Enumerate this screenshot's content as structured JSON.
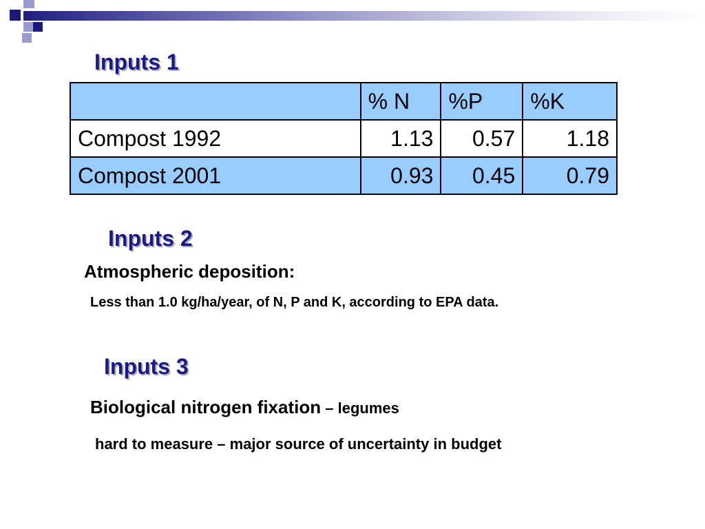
{
  "slide": {
    "heading1": "Inputs 1",
    "heading2": "Inputs 2",
    "heading3": "Inputs 3"
  },
  "table": {
    "headers": [
      "",
      "% N",
      "%P",
      "%K"
    ],
    "rows": [
      {
        "label": "Compost 1992",
        "n": "1.13",
        "p": "0.57",
        "k": "1.18"
      },
      {
        "label": "Compost 2001",
        "n": "0.93",
        "p": "0.45",
        "k": "0.79"
      }
    ]
  },
  "inputs2": {
    "title": "Atmospheric deposition:",
    "body": "Less than 1.0 kg/ha/year, of N, P and K, according to EPA data."
  },
  "inputs3": {
    "title": "Biological nitrogen fixation",
    "separator": " – ",
    "detail": "legumes",
    "body": "hard to measure – major source of uncertainty in budget"
  },
  "colors": {
    "heading": "#1a1a8c",
    "table_fill": "#99ccff",
    "accent_navy": "#1a1a7a",
    "accent_light": "#9a9ad0"
  }
}
